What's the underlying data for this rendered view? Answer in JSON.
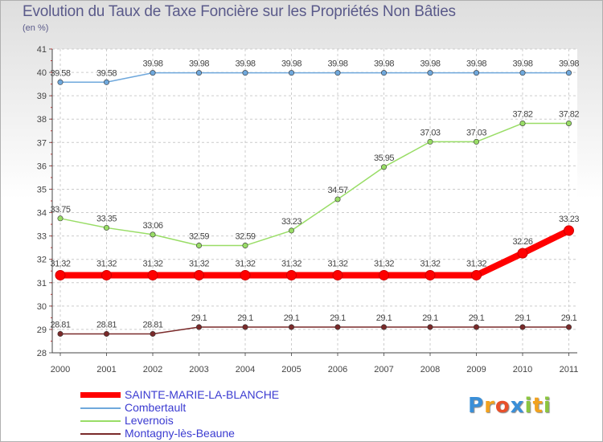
{
  "chart_data": {
    "type": "line",
    "title": "Evolution du Taux de Taxe Foncière sur les Propriétés Non Bâties",
    "ylabel": "(en %)",
    "xlabel": "",
    "ylim": [
      28,
      41
    ],
    "yticks": [
      "28",
      "29",
      "30",
      "31",
      "32",
      "33",
      "34",
      "35",
      "36",
      "37",
      "38",
      "39",
      "40",
      "41"
    ],
    "categories": [
      "2000",
      "2001",
      "2002",
      "2003",
      "2004",
      "2005",
      "2006",
      "2007",
      "2008",
      "2009",
      "2010",
      "2011"
    ],
    "grid": true,
    "legend_position": "bottom-left",
    "series": [
      {
        "name": "SAINTE-MARIE-LA-BLANCHE",
        "color": "#ff0000",
        "values": [
          31.32,
          31.32,
          31.32,
          31.32,
          31.32,
          31.32,
          31.32,
          31.32,
          31.32,
          31.32,
          32.26,
          33.23
        ],
        "labels": [
          "31.32",
          "31.32",
          "31.32",
          "31.32",
          "31.32",
          "31.32",
          "31.32",
          "31.32",
          "31.32",
          "31.32",
          "32.26",
          "33.23"
        ]
      },
      {
        "name": "Combertault",
        "color": "#6fa8dc",
        "values": [
          39.58,
          39.58,
          39.98,
          39.98,
          39.98,
          39.98,
          39.98,
          39.98,
          39.98,
          39.98,
          39.98,
          39.98
        ],
        "labels": [
          "39.58",
          "39.58",
          "39.98",
          "39.98",
          "39.98",
          "39.98",
          "39.98",
          "39.98",
          "39.98",
          "39.98",
          "39.98",
          "39.98"
        ]
      },
      {
        "name": "Levernois",
        "color": "#99dd66",
        "values": [
          33.75,
          33.35,
          33.06,
          32.59,
          32.59,
          33.23,
          34.57,
          35.95,
          37.03,
          37.03,
          37.82,
          37.82
        ],
        "labels": [
          "33.75",
          "33.35",
          "33.06",
          "32.59",
          "32.59",
          "33.23",
          "34.57",
          "35.95",
          "37.03",
          "37.03",
          "37.82",
          "37.82"
        ]
      },
      {
        "name": "Montagny-lès-Beaune",
        "color": "#7a2a2a",
        "values": [
          28.81,
          28.81,
          28.81,
          29.1,
          29.1,
          29.1,
          29.1,
          29.1,
          29.1,
          29.1,
          29.1,
          29.1
        ],
        "labels": [
          "28.81",
          "28.81",
          "28.81",
          "29.1",
          "29.1",
          "29.1",
          "29.1",
          "29.1",
          "29.1",
          "29.1",
          "29.1",
          "29.1"
        ]
      }
    ]
  },
  "logo": {
    "letters": [
      "P",
      "r",
      "o",
      "x",
      "i",
      "t",
      "i"
    ],
    "colors": [
      "#3a8fd8",
      "#f2a21e",
      "#e8502a",
      "#3a8fd8",
      "#8cc63f",
      "#f2a21e",
      "#8cc63f"
    ]
  }
}
